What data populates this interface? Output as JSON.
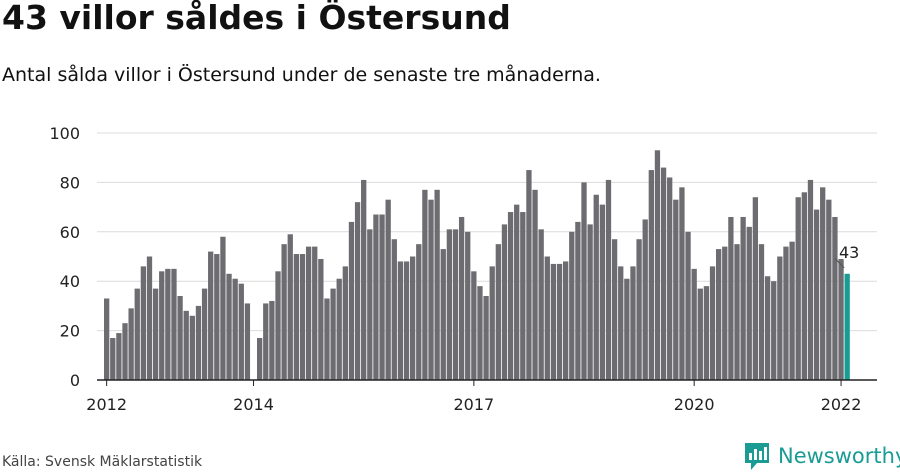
{
  "title": "43 villor såldes i Östersund",
  "subtitle": "Antal sålda villor i Östersund under de senaste tre månaderna.",
  "source": "Källa: Svensk Mäklarstatistik",
  "brand": {
    "name": "Newsworthy",
    "icon": "newsworthy-logo-icon",
    "color": "#1a9c94"
  },
  "chart_data": {
    "type": "bar",
    "ylim": [
      0,
      100
    ],
    "yticks": [
      0,
      20,
      40,
      60,
      80,
      100
    ],
    "xtick_labels": [
      "2012",
      "2014",
      "2017",
      "2020",
      "2022"
    ],
    "grid": true,
    "bar_color": "#6d6c71",
    "highlight_color": "#1a9c94",
    "annotation": {
      "label": "43",
      "value": 43
    },
    "values": [
      33,
      17,
      19,
      23,
      29,
      37,
      46,
      50,
      37,
      44,
      45,
      45,
      34,
      28,
      26,
      30,
      37,
      52,
      51,
      58,
      43,
      41,
      39,
      31,
      0,
      17,
      31,
      32,
      44,
      55,
      59,
      51,
      51,
      54,
      54,
      49,
      33,
      37,
      41,
      46,
      64,
      72,
      81,
      61,
      67,
      67,
      73,
      57,
      48,
      48,
      50,
      55,
      77,
      73,
      77,
      53,
      61,
      61,
      66,
      60,
      44,
      38,
      34,
      46,
      55,
      63,
      68,
      71,
      68,
      85,
      77,
      61,
      50,
      47,
      47,
      48,
      60,
      64,
      80,
      63,
      75,
      71,
      81,
      57,
      46,
      41,
      46,
      57,
      65,
      85,
      93,
      86,
      82,
      73,
      78,
      60,
      45,
      37,
      38,
      46,
      53,
      54,
      66,
      55,
      66,
      62,
      74,
      55,
      42,
      40,
      50,
      54,
      56,
      74,
      76,
      81,
      69,
      78,
      73,
      66,
      49,
      43
    ]
  }
}
